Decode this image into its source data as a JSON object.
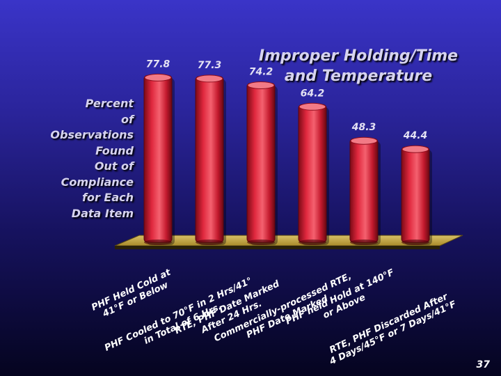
{
  "slide": {
    "title_line1": "Improper Holding/Time",
    "title_line2": "and Temperature",
    "page_number": "37"
  },
  "chart_data": {
    "type": "bar",
    "title": "Improper Holding/Time and Temperature",
    "ylabel_lines": [
      "Percent",
      "of",
      "Observations",
      "Found",
      "Out of",
      "Compliance",
      "for Each",
      "Data Item"
    ],
    "categories": [
      [
        "PHF Held Cold at",
        "41°F or Below"
      ],
      [
        "PHF Cooled to 70°F in 2 Hrs/41°",
        "in Total of 6 Hrs."
      ],
      [
        "RTE, PHF Date Marked",
        "After 24 Hrs."
      ],
      [
        "Commercially-processed RTE,",
        "PHF Date Marked"
      ],
      [
        "PHF held Hold at 140°F",
        "or Above"
      ],
      [
        "RTE, PHF Discarded After",
        "4 Days/45°F or 7 Days/41°F"
      ]
    ],
    "values": [
      77.8,
      77.3,
      74.2,
      64.2,
      48.3,
      44.4
    ],
    "ylim": [
      0,
      100
    ],
    "grid": false,
    "bar_color": "#d42238"
  }
}
